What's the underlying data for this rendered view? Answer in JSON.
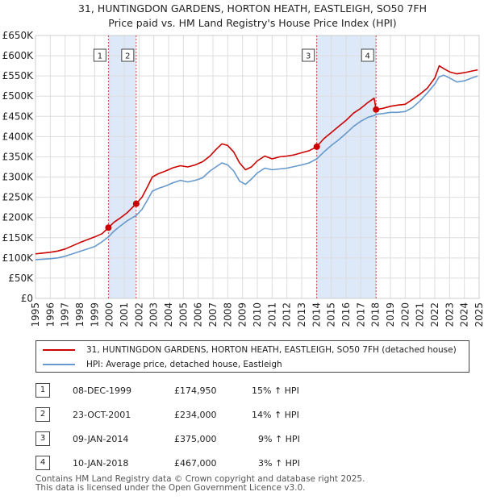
{
  "title_line1": "31, HUNTINGDON GARDENS, HORTON HEATH, EASTLEIGH, SO50 7FH",
  "title_line2": "Price paid vs. HM Land Registry's House Price Index (HPI)",
  "colors": {
    "property": "#cc0000",
    "hpi": "#6699cc",
    "shade": "#dde8f8",
    "marker_line": "#cc0000"
  },
  "legend": {
    "property_label": "31, HUNTINGDON GARDENS, HORTON HEATH, EASTLEIGH, SO50 7FH (detached house)",
    "hpi_label": "HPI: Average price, detached house, Eastleigh"
  },
  "sales": [
    {
      "num": "1",
      "date": "08-DEC-1999",
      "price": "£174,950",
      "hpi_diff": "15% ↑ HPI"
    },
    {
      "num": "2",
      "date": "23-OCT-2001",
      "price": "£234,000",
      "hpi_diff": "14% ↑ HPI"
    },
    {
      "num": "3",
      "date": "09-JAN-2014",
      "price": "£375,000",
      "hpi_diff": "9% ↑ HPI"
    },
    {
      "num": "4",
      "date": "10-JAN-2018",
      "price": "£467,000",
      "hpi_diff": "3% ↑ HPI"
    }
  ],
  "footer": {
    "line1": "Contains HM Land Registry data © Crown copyright and database right 2025.",
    "line2": "This data is licensed under the Open Government Licence v3.0."
  },
  "chart_data": {
    "type": "line",
    "title": "31, HUNTINGDON GARDENS, HORTON HEATH, EASTLEIGH, SO50 7FH — Price paid vs. HM Land Registry's House Price Index (HPI)",
    "xlabel": "",
    "ylabel": "",
    "xlim": [
      1995,
      2025
    ],
    "ylim": [
      0,
      650000
    ],
    "y_ticks": [
      {
        "value": 0,
        "label": "£0"
      },
      {
        "value": 50000,
        "label": "£50K"
      },
      {
        "value": 100000,
        "label": "£100K"
      },
      {
        "value": 150000,
        "label": "£150K"
      },
      {
        "value": 200000,
        "label": "£200K"
      },
      {
        "value": 250000,
        "label": "£250K"
      },
      {
        "value": 300000,
        "label": "£300K"
      },
      {
        "value": 350000,
        "label": "£350K"
      },
      {
        "value": 400000,
        "label": "£400K"
      },
      {
        "value": 450000,
        "label": "£450K"
      },
      {
        "value": 500000,
        "label": "£500K"
      },
      {
        "value": 550000,
        "label": "£550K"
      },
      {
        "value": 600000,
        "label": "£600K"
      },
      {
        "value": 650000,
        "label": "£650K"
      }
    ],
    "x_ticks": [
      "1995",
      "1996",
      "1997",
      "1998",
      "1999",
      "2000",
      "2001",
      "2002",
      "2003",
      "2004",
      "2005",
      "2006",
      "2007",
      "2008",
      "2009",
      "2010",
      "2011",
      "2012",
      "2013",
      "2014",
      "2015",
      "2016",
      "2017",
      "2018",
      "2019",
      "2020",
      "2021",
      "2022",
      "2023",
      "2024",
      "2025"
    ],
    "grid": true,
    "shaded_ranges": [
      [
        1999.93,
        2001.81
      ],
      [
        2014.02,
        2018.03
      ]
    ],
    "markers": [
      {
        "label": "1",
        "x": 1999.93,
        "y": 174950
      },
      {
        "label": "2",
        "x": 2001.81,
        "y": 234000
      },
      {
        "label": "3",
        "x": 2014.02,
        "y": 375000
      },
      {
        "label": "4",
        "x": 2018.03,
        "y": 467000
      }
    ],
    "series": [
      {
        "name": "31, HUNTINGDON GARDENS, HORTON HEATH, EASTLEIGH, SO50 7FH (detached house)",
        "points": [
          [
            1995.0,
            110000
          ],
          [
            1995.5,
            112000
          ],
          [
            1996.0,
            114000
          ],
          [
            1996.5,
            117000
          ],
          [
            1997.0,
            122000
          ],
          [
            1997.5,
            130000
          ],
          [
            1998.0,
            138000
          ],
          [
            1998.5,
            145000
          ],
          [
            1999.0,
            152000
          ],
          [
            1999.5,
            160000
          ],
          [
            1999.93,
            174950
          ],
          [
            2000.3,
            188000
          ],
          [
            2000.7,
            198000
          ],
          [
            2001.2,
            212000
          ],
          [
            2001.81,
            234000
          ],
          [
            2002.2,
            250000
          ],
          [
            2002.6,
            278000
          ],
          [
            2002.9,
            300000
          ],
          [
            2003.3,
            308000
          ],
          [
            2003.8,
            315000
          ],
          [
            2004.3,
            323000
          ],
          [
            2004.8,
            328000
          ],
          [
            2005.3,
            325000
          ],
          [
            2005.8,
            330000
          ],
          [
            2006.3,
            338000
          ],
          [
            2006.8,
            352000
          ],
          [
            2007.2,
            368000
          ],
          [
            2007.6,
            382000
          ],
          [
            2008.0,
            378000
          ],
          [
            2008.4,
            362000
          ],
          [
            2008.8,
            335000
          ],
          [
            2009.2,
            318000
          ],
          [
            2009.6,
            325000
          ],
          [
            2010.0,
            340000
          ],
          [
            2010.5,
            352000
          ],
          [
            2011.0,
            345000
          ],
          [
            2011.5,
            350000
          ],
          [
            2012.0,
            352000
          ],
          [
            2012.5,
            355000
          ],
          [
            2013.0,
            360000
          ],
          [
            2013.5,
            365000
          ],
          [
            2014.02,
            375000
          ],
          [
            2014.5,
            395000
          ],
          [
            2015.0,
            410000
          ],
          [
            2015.5,
            425000
          ],
          [
            2016.0,
            440000
          ],
          [
            2016.5,
            458000
          ],
          [
            2017.0,
            470000
          ],
          [
            2017.5,
            485000
          ],
          [
            2017.9,
            495000
          ],
          [
            2018.03,
            467000
          ],
          [
            2018.5,
            470000
          ],
          [
            2019.0,
            475000
          ],
          [
            2019.5,
            478000
          ],
          [
            2020.0,
            480000
          ],
          [
            2020.5,
            492000
          ],
          [
            2021.0,
            505000
          ],
          [
            2021.5,
            520000
          ],
          [
            2022.0,
            545000
          ],
          [
            2022.3,
            575000
          ],
          [
            2022.6,
            568000
          ],
          [
            2023.0,
            560000
          ],
          [
            2023.5,
            555000
          ],
          [
            2024.0,
            558000
          ],
          [
            2024.5,
            562000
          ],
          [
            2024.9,
            565000
          ]
        ]
      },
      {
        "name": "HPI: Average price, detached house, Eastleigh",
        "points": [
          [
            1995.0,
            96000
          ],
          [
            1995.5,
            97000
          ],
          [
            1996.0,
            98000
          ],
          [
            1996.5,
            100000
          ],
          [
            1997.0,
            104000
          ],
          [
            1997.5,
            110000
          ],
          [
            1998.0,
            116000
          ],
          [
            1998.5,
            122000
          ],
          [
            1999.0,
            128000
          ],
          [
            1999.5,
            140000
          ],
          [
            1999.93,
            152000
          ],
          [
            2000.3,
            166000
          ],
          [
            2000.7,
            178000
          ],
          [
            2001.2,
            192000
          ],
          [
            2001.81,
            205000
          ],
          [
            2002.2,
            220000
          ],
          [
            2002.6,
            245000
          ],
          [
            2002.9,
            265000
          ],
          [
            2003.3,
            272000
          ],
          [
            2003.8,
            278000
          ],
          [
            2004.3,
            286000
          ],
          [
            2004.8,
            292000
          ],
          [
            2005.3,
            288000
          ],
          [
            2005.8,
            292000
          ],
          [
            2006.3,
            298000
          ],
          [
            2006.8,
            315000
          ],
          [
            2007.2,
            325000
          ],
          [
            2007.6,
            335000
          ],
          [
            2008.0,
            330000
          ],
          [
            2008.4,
            315000
          ],
          [
            2008.8,
            290000
          ],
          [
            2009.2,
            282000
          ],
          [
            2009.6,
            295000
          ],
          [
            2010.0,
            310000
          ],
          [
            2010.5,
            322000
          ],
          [
            2011.0,
            318000
          ],
          [
            2011.5,
            320000
          ],
          [
            2012.0,
            322000
          ],
          [
            2012.5,
            326000
          ],
          [
            2013.0,
            330000
          ],
          [
            2013.5,
            335000
          ],
          [
            2014.02,
            345000
          ],
          [
            2014.5,
            362000
          ],
          [
            2015.0,
            378000
          ],
          [
            2015.5,
            392000
          ],
          [
            2016.0,
            408000
          ],
          [
            2016.5,
            425000
          ],
          [
            2017.0,
            438000
          ],
          [
            2017.5,
            448000
          ],
          [
            2017.9,
            452000
          ],
          [
            2018.03,
            455000
          ],
          [
            2018.5,
            457000
          ],
          [
            2019.0,
            460000
          ],
          [
            2019.5,
            460000
          ],
          [
            2020.0,
            462000
          ],
          [
            2020.5,
            472000
          ],
          [
            2021.0,
            488000
          ],
          [
            2021.5,
            508000
          ],
          [
            2022.0,
            530000
          ],
          [
            2022.3,
            548000
          ],
          [
            2022.6,
            552000
          ],
          [
            2023.0,
            545000
          ],
          [
            2023.5,
            535000
          ],
          [
            2024.0,
            538000
          ],
          [
            2024.5,
            545000
          ],
          [
            2024.9,
            550000
          ]
        ]
      }
    ]
  }
}
